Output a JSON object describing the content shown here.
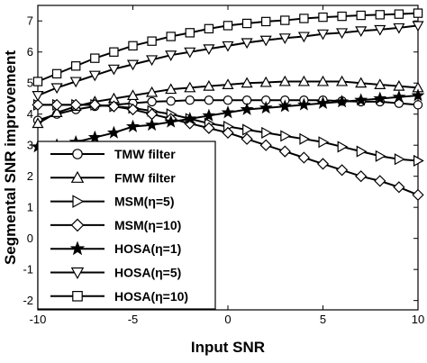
{
  "chart_data": {
    "type": "line",
    "title": "",
    "xlabel": "Input SNR",
    "ylabel": "Segmental SNR improvement",
    "xlim": [
      -10,
      10
    ],
    "ylim": [
      -2.3,
      7.5
    ],
    "xticks": [
      -10,
      -5,
      0,
      5,
      10
    ],
    "yticks": [
      -2,
      -1,
      0,
      1,
      2,
      3,
      4,
      5,
      6,
      7
    ],
    "grid": false,
    "legend_position": "bottom-left",
    "x": [
      -10,
      -9,
      -8,
      -7,
      -6,
      -5,
      -4,
      -3,
      -2,
      -1,
      0,
      1,
      2,
      3,
      4,
      5,
      6,
      7,
      8,
      9,
      10
    ],
    "series": [
      {
        "name": "TMW filter",
        "marker": "circle",
        "values": [
          3.8,
          4.0,
          4.15,
          4.25,
          4.3,
          4.35,
          4.4,
          4.42,
          4.45,
          4.45,
          4.45,
          4.45,
          4.45,
          4.45,
          4.45,
          4.45,
          4.42,
          4.4,
          4.4,
          4.35,
          4.3
        ]
      },
      {
        "name": "FMW filter",
        "marker": "triangle-up",
        "values": [
          3.7,
          4.05,
          4.25,
          4.4,
          4.5,
          4.6,
          4.7,
          4.8,
          4.85,
          4.9,
          4.95,
          5.0,
          5.02,
          5.05,
          5.05,
          5.05,
          5.05,
          5.0,
          4.95,
          4.9,
          4.85
        ]
      },
      {
        "name": "MSM(η=5)",
        "marker": "triangle-right",
        "values": [
          4.3,
          4.3,
          4.3,
          4.3,
          4.25,
          4.2,
          4.1,
          4.0,
          3.85,
          3.7,
          3.6,
          3.5,
          3.4,
          3.3,
          3.2,
          3.1,
          2.95,
          2.8,
          2.65,
          2.55,
          2.5
        ]
      },
      {
        "name": "MSM(η=10)",
        "marker": "diamond",
        "values": [
          4.3,
          4.3,
          4.3,
          4.3,
          4.25,
          4.15,
          4.0,
          3.85,
          3.7,
          3.55,
          3.4,
          3.2,
          3.0,
          2.8,
          2.6,
          2.4,
          2.2,
          2.0,
          1.85,
          1.65,
          1.4
        ]
      },
      {
        "name": "HOSA(η=1)",
        "marker": "star",
        "values": [
          2.95,
          3.0,
          3.1,
          3.25,
          3.4,
          3.6,
          3.65,
          3.75,
          3.85,
          3.95,
          4.05,
          4.15,
          4.2,
          4.25,
          4.3,
          4.35,
          4.4,
          4.45,
          4.5,
          4.55,
          4.6
        ]
      },
      {
        "name": "HOSA(η=5)",
        "marker": "triangle-down",
        "values": [
          4.6,
          4.85,
          5.05,
          5.25,
          5.45,
          5.6,
          5.75,
          5.9,
          6.0,
          6.1,
          6.2,
          6.3,
          6.38,
          6.45,
          6.5,
          6.58,
          6.62,
          6.68,
          6.72,
          6.78,
          6.85
        ]
      },
      {
        "name": "HOSA(η=10)",
        "marker": "square",
        "values": [
          5.05,
          5.3,
          5.55,
          5.8,
          6.0,
          6.2,
          6.35,
          6.5,
          6.62,
          6.75,
          6.85,
          6.92,
          6.98,
          7.02,
          7.08,
          7.12,
          7.15,
          7.18,
          7.2,
          7.22,
          7.25
        ]
      }
    ]
  }
}
